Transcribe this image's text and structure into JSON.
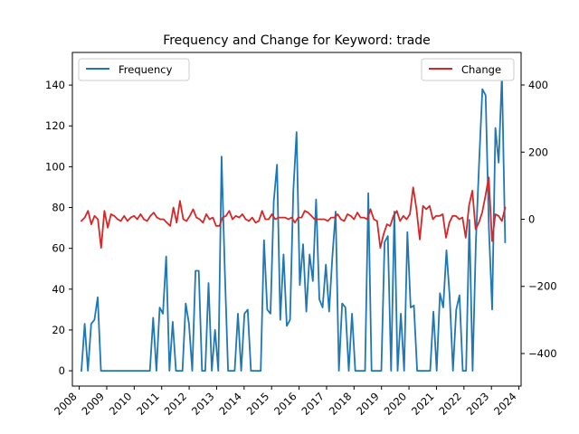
{
  "chart_data": {
    "type": "line",
    "title": "Frequency and Change for Keyword: trade",
    "xlabel": "",
    "ylabel_left": "",
    "ylabel_right": "",
    "x_ticks": [
      "2008",
      "2009",
      "2010",
      "2011",
      "2012",
      "2013",
      "2014",
      "2015",
      "2016",
      "2017",
      "2018",
      "2019",
      "2020",
      "2021",
      "2022",
      "2023",
      "2024"
    ],
    "xlim": [
      2007.75,
      2024.08
    ],
    "y_left_ticks": [
      0,
      20,
      40,
      60,
      80,
      100,
      120,
      140
    ],
    "ylim_left": [
      -7.5,
      156
    ],
    "y_right_ticks": [
      -400,
      -200,
      0,
      200,
      400
    ],
    "ylim_right": [
      -497,
      497
    ],
    "grid": false,
    "legend_left": {
      "placement": "upper left",
      "label": "Frequency"
    },
    "legend_right": {
      "placement": "upper right",
      "label": "Change"
    },
    "series": [
      {
        "name": "Frequency",
        "axis": "left",
        "color": "#1f77b4",
        "values": [
          0,
          23,
          0,
          23,
          25,
          36,
          0,
          0,
          0,
          0,
          0,
          0,
          0,
          0,
          0,
          0,
          0,
          0,
          0,
          0,
          0,
          0,
          26,
          0,
          31,
          28,
          56,
          0,
          24,
          0,
          0,
          0,
          33,
          23,
          0,
          49,
          49,
          0,
          0,
          43,
          0,
          20,
          0,
          105,
          49,
          0,
          0,
          0,
          28,
          0,
          28,
          30,
          0,
          0,
          0,
          0,
          64,
          30,
          28,
          83,
          101,
          25,
          57,
          22,
          25,
          88,
          117,
          42,
          62,
          29,
          57,
          44,
          84,
          35,
          31,
          52,
          29,
          56,
          78,
          0,
          33,
          31,
          0,
          28,
          0,
          0,
          0,
          0,
          87,
          0,
          0,
          0,
          0,
          63,
          66,
          0,
          78,
          0,
          28,
          0,
          68,
          31,
          32,
          0,
          0,
          0,
          0,
          0,
          29,
          0,
          38,
          31,
          59,
          36,
          0,
          30,
          37,
          0,
          0,
          74,
          0,
          63,
          102,
          138,
          135,
          70,
          30,
          119,
          102,
          145,
          63
        ]
      },
      {
        "name": "Change",
        "axis": "right",
        "color": "#d62728",
        "values": [
          -5,
          5,
          25,
          -15,
          10,
          0,
          -85,
          25,
          -25,
          15,
          10,
          0,
          -5,
          10,
          -5,
          5,
          10,
          0,
          15,
          0,
          -5,
          10,
          20,
          5,
          0,
          0,
          -10,
          -20,
          35,
          -10,
          55,
          0,
          -5,
          10,
          30,
          5,
          0,
          -10,
          15,
          0,
          5,
          -20,
          -20,
          5,
          10,
          25,
          0,
          10,
          5,
          15,
          0,
          -5,
          5,
          -10,
          -5,
          25,
          0,
          0,
          15,
          0,
          5,
          5,
          5,
          0,
          5,
          -10,
          5,
          5,
          25,
          20,
          10,
          0,
          0,
          0,
          0,
          -5,
          5,
          5,
          15,
          0,
          -5,
          15,
          10,
          0,
          20,
          5,
          5,
          0,
          30,
          0,
          -5,
          -85,
          -45,
          -15,
          -20,
          10,
          25,
          -5,
          10,
          0,
          15,
          95,
          30,
          -60,
          40,
          30,
          40,
          0,
          10,
          10,
          15,
          -55,
          -10,
          10,
          10,
          0,
          5,
          -55,
          40,
          85,
          -30,
          -10,
          20,
          70,
          125,
          -65,
          15,
          10,
          -5,
          35
        ]
      }
    ]
  }
}
